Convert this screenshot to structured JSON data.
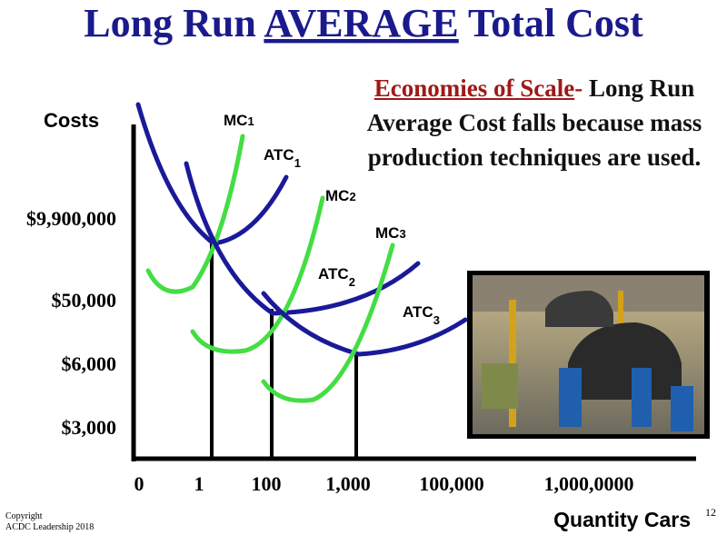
{
  "title": {
    "before": "Long Run ",
    "underlined": "AVERAGE",
    "after": " Total Cost"
  },
  "note": {
    "term": "Economies of Scale",
    "dash": "-",
    "text": " Long Run Average Cost falls because mass production techniques are used."
  },
  "y_axis_label": "Costs",
  "x_axis_label": "Quantity Cars",
  "y_labels": [
    "$9,900,000",
    "$50,000",
    "$6,000",
    "$3,000"
  ],
  "x_labels": [
    "0",
    "1",
    "100",
    "1,000",
    "100,000",
    "1,000,0000"
  ],
  "curves": [
    {
      "label": "MC",
      "subscript": "1"
    },
    {
      "label": "ATC",
      "subscript": "1"
    },
    {
      "label": "MC",
      "subscript": "2"
    },
    {
      "label": "MC",
      "subscript": "3"
    },
    {
      "label": "ATC",
      "subscript": "2"
    },
    {
      "label": "ATC",
      "subscript": "3"
    }
  ],
  "footer": {
    "copyright": "Copyright",
    "org": "ACDC Leadership 2018"
  },
  "page_number": "12"
}
